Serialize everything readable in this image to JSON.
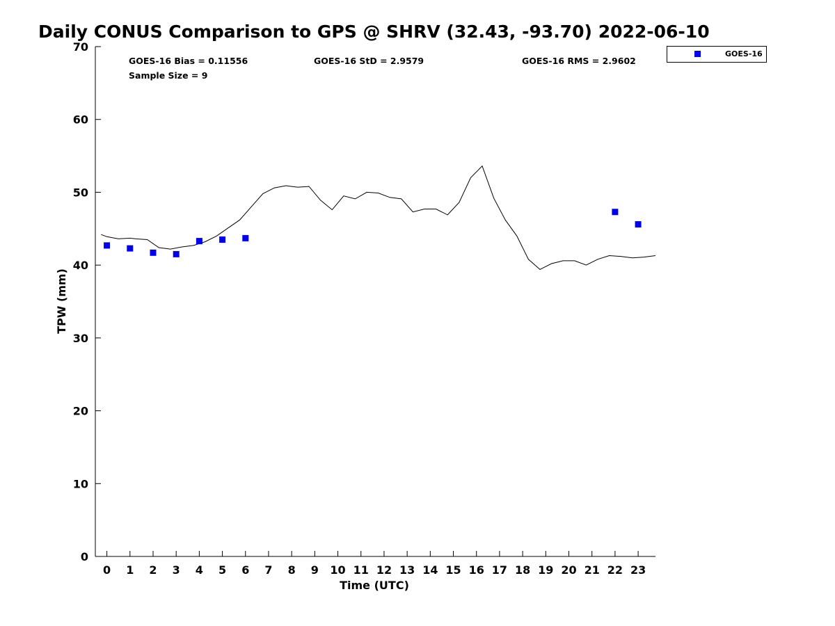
{
  "chart_data": {
    "type": "line",
    "title": "Daily CONUS Comparison to GPS @ SHRV (32.43, -93.70) 2022-06-10",
    "xlabel": "Time (UTC)",
    "ylabel": "TPW (mm)",
    "xlim": [
      -0.5,
      23.75
    ],
    "ylim": [
      0,
      70
    ],
    "grid": false,
    "legend_position": "top-right",
    "x_ticks": [
      0,
      1,
      2,
      3,
      4,
      5,
      6,
      7,
      8,
      9,
      10,
      11,
      12,
      13,
      14,
      15,
      16,
      17,
      18,
      19,
      20,
      21,
      22,
      23
    ],
    "y_ticks": [
      0,
      10,
      20,
      30,
      40,
      50,
      60,
      70
    ],
    "stats": {
      "bias": "GOES-16 Bias = 0.11556",
      "std": "GOES-16 StD = 2.9579",
      "rms": "GOES-16 RMS = 2.9602",
      "sample": "Sample Size = 9"
    },
    "series": [
      {
        "kind": "line",
        "color": "#000000",
        "x": [
          -0.25,
          0.0,
          0.5,
          1.0,
          1.25,
          1.75,
          2.25,
          2.75,
          3.25,
          3.75,
          4.25,
          4.75,
          5.25,
          5.75,
          6.25,
          6.75,
          7.25,
          7.75,
          8.25,
          8.75,
          9.25,
          9.75,
          10.25,
          10.75,
          11.25,
          11.75,
          12.25,
          12.75,
          13.25,
          13.75,
          14.25,
          14.75,
          15.25,
          15.75,
          16.25,
          16.75,
          17.25,
          17.75,
          18.25,
          18.75,
          19.25,
          19.75,
          20.25,
          20.75,
          21.25,
          21.75,
          22.25,
          22.75,
          23.25,
          23.75
        ],
        "y": [
          44.2,
          43.9,
          43.6,
          43.7,
          43.6,
          43.5,
          42.4,
          42.2,
          42.5,
          42.7,
          43.2,
          44.0,
          45.1,
          46.2,
          48.0,
          49.8,
          50.6,
          50.9,
          50.7,
          50.8,
          48.9,
          47.6,
          49.5,
          49.1,
          50.0,
          49.9,
          49.3,
          49.1,
          47.3,
          47.7,
          47.7,
          46.9,
          48.6,
          52.0,
          53.6,
          49.2,
          46.2,
          44.0,
          40.8,
          39.4,
          40.2,
          40.6,
          40.6,
          40.0,
          40.8,
          41.3,
          41.2,
          41.0,
          41.1,
          41.3
        ]
      },
      {
        "kind": "scatter",
        "name": "GOES-16",
        "color": "#0000ee",
        "x": [
          0,
          1,
          2,
          3,
          4,
          5,
          6,
          22,
          23
        ],
        "y": [
          42.7,
          42.3,
          41.7,
          41.5,
          43.3,
          43.5,
          43.7,
          47.3,
          45.6
        ]
      }
    ]
  }
}
